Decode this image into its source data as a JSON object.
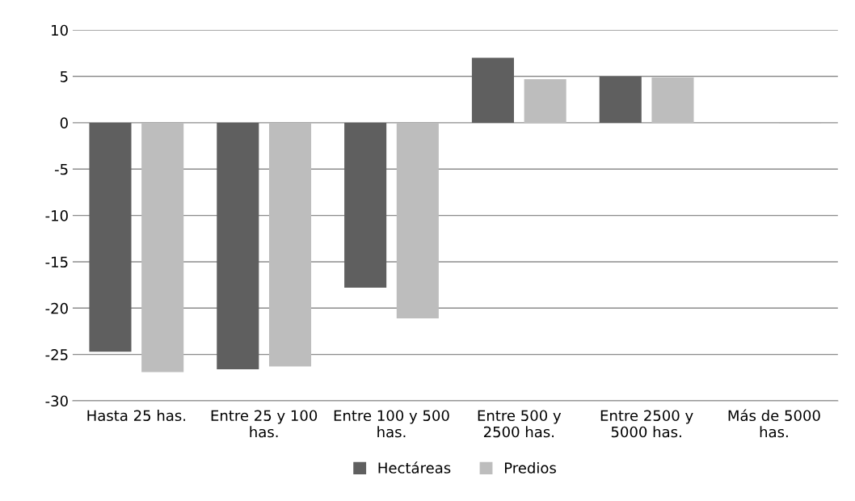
{
  "chart_data": {
    "type": "bar",
    "categories": [
      "Hasta 25 has.",
      "Entre 25 y 100 has.",
      "Entre 100 y 500 has.",
      "Entre 500 y 2500 has.",
      "Entre 2500 y 5000 has.",
      "Más de 5000 has."
    ],
    "series": [
      {
        "name": "Hectáreas",
        "color": "#5f5f5f",
        "values": [
          -24.7,
          -26.6,
          -17.8,
          7.0,
          5.0,
          0
        ]
      },
      {
        "name": "Predios",
        "color": "#bdbdbd",
        "values": [
          -26.9,
          -26.3,
          -21.1,
          4.7,
          4.9,
          -0.1
        ]
      }
    ],
    "ylim": [
      -30,
      10
    ],
    "yticks": [
      -30,
      -25,
      -20,
      -15,
      -10,
      -5,
      0,
      5,
      10
    ],
    "grid": "y",
    "legend": "bottom"
  }
}
